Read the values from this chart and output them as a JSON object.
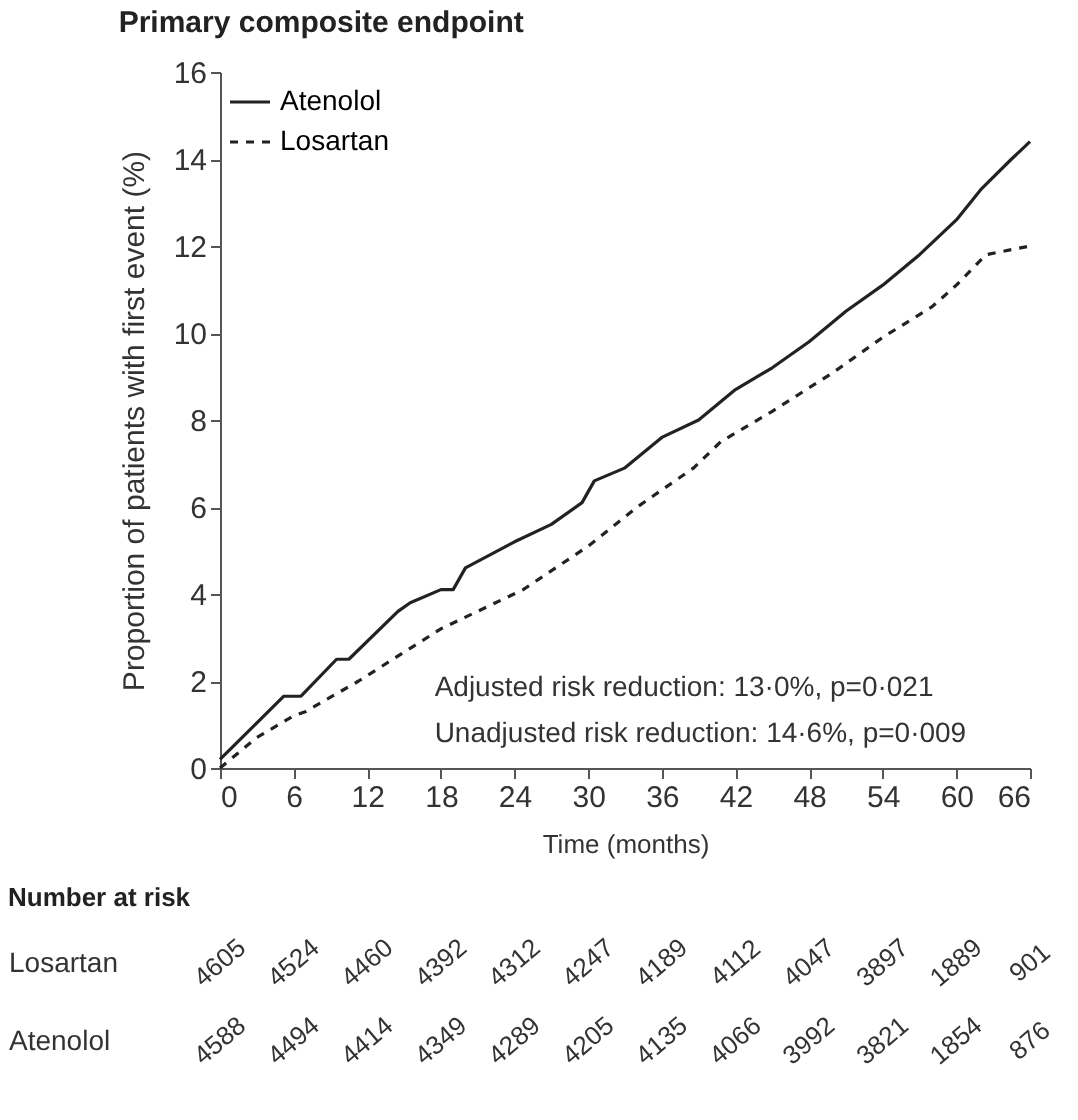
{
  "chart_data": {
    "type": "line",
    "title": "Primary composite endpoint",
    "xlabel": "Time (months)",
    "ylabel": "Proportion of patients with first event (%)",
    "xlim": [
      0,
      66
    ],
    "xticks": [
      0,
      6,
      12,
      18,
      24,
      30,
      36,
      42,
      48,
      54,
      60,
      66
    ],
    "ylim": [
      0,
      16
    ],
    "yticks": [
      0,
      2,
      4,
      6,
      8,
      10,
      12,
      14,
      16
    ],
    "legend": "top left",
    "series": [
      {
        "name": "Atenolol",
        "color": "#222222",
        "line_style": "solid",
        "x": [
          0,
          5.2,
          6.6,
          9.5,
          10.5,
          14.5,
          15.5,
          18,
          19,
          20,
          24,
          27,
          29.5,
          30.5,
          33,
          36,
          39,
          42,
          45,
          48,
          51,
          54,
          57,
          60,
          62,
          64.5,
          66
        ],
        "values": [
          0.2,
          1.65,
          1.65,
          2.5,
          2.5,
          3.6,
          3.8,
          4.1,
          4.1,
          4.6,
          5.2,
          5.6,
          6.1,
          6.6,
          6.9,
          7.6,
          8.0,
          8.7,
          9.2,
          9.8,
          10.5,
          11.1,
          11.8,
          12.6,
          13.3,
          14.0,
          14.4
        ]
      },
      {
        "name": "Losartan",
        "color": "#222222",
        "line_style": "dashed",
        "x": [
          0,
          3,
          6,
          7,
          11.3,
          18,
          24.7,
          30,
          34,
          38.6,
          40.8,
          45,
          50,
          54,
          58,
          60,
          62.4,
          66
        ],
        "values": [
          0,
          0.7,
          1.2,
          1.3,
          2,
          3.2,
          4.1,
          5.1,
          6.0,
          6.9,
          7.5,
          8.2,
          9.1,
          9.9,
          10.6,
          11.1,
          11.8,
          12.0
        ]
      }
    ],
    "annotations": [
      "Adjusted risk reduction: 13·0%, p=0·021",
      "Unadjusted risk reduction: 14·6%, p=0·009",
      "Number at risk",
      "Losartan",
      "4605",
      "4524",
      "4460",
      "4392",
      "4312",
      "4247",
      "4189",
      "4112",
      "4047",
      "3897",
      "1889",
      "901",
      "Atenolol",
      "4588",
      "4494",
      "4414",
      "4349",
      "4289",
      "4205",
      "4135",
      "4066",
      "3992",
      "3821",
      "1854",
      "876"
    ]
  }
}
